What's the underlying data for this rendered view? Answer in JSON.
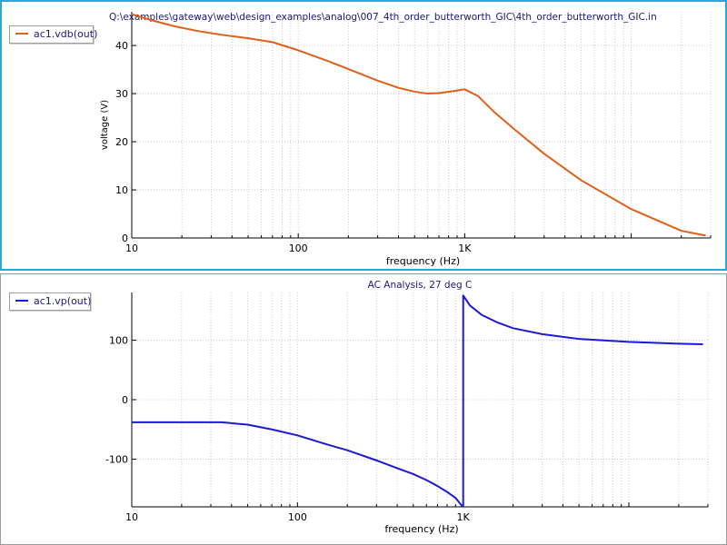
{
  "chart_data": [
    {
      "type": "line",
      "title": "Q:\\examples\\gateway\\web\\design_examples\\analog\\007_4th_order_butterworth_GIC\\4th_order_butterworth_GIC.in",
      "xlabel": "frequency (Hz)",
      "ylabel": "voltage (V)",
      "xscale": "log",
      "xlim": [
        10,
        30000
      ],
      "ylim": [
        0,
        47
      ],
      "xticks": [
        {
          "value": 10,
          "label": "10"
        },
        {
          "value": 100,
          "label": "100"
        },
        {
          "value": 1000,
          "label": "1K"
        }
      ],
      "yticks": [
        0,
        10,
        20,
        30,
        40
      ],
      "grid": true,
      "legend": "top-left",
      "series": [
        {
          "name": "ac1.vdb(out)",
          "color": "#e0601a",
          "x": [
            10,
            13,
            18,
            25,
            35,
            50,
            70,
            100,
            150,
            200,
            300,
            400,
            500,
            600,
            700,
            850,
            1000,
            1200,
            1500,
            2000,
            3000,
            5000,
            10000,
            20000,
            28000
          ],
          "y": [
            46.5,
            45.3,
            44,
            43,
            42.2,
            41.5,
            40.7,
            39,
            36.8,
            35.1,
            32.7,
            31.2,
            30.4,
            30.0,
            30.1,
            30.5,
            30.9,
            29.5,
            26.2,
            22.5,
            17.5,
            12,
            6,
            1.5,
            0.5
          ]
        }
      ]
    },
    {
      "type": "line",
      "title": "AC Analysis, 27 deg C",
      "xlabel": "frequency (Hz)",
      "ylabel": "",
      "xscale": "log",
      "xlim": [
        10,
        30000
      ],
      "ylim": [
        -180,
        180
      ],
      "xticks": [
        {
          "value": 10,
          "label": "10"
        },
        {
          "value": 100,
          "label": "100"
        },
        {
          "value": 1000,
          "label": "1K"
        }
      ],
      "yticks": [
        -100,
        0,
        100
      ],
      "grid": true,
      "legend": "top-left",
      "series": [
        {
          "name": "ac1.vp(out)",
          "color": "#1a1ad8",
          "x": [
            10,
            20,
            35,
            50,
            70,
            100,
            150,
            200,
            300,
            400,
            500,
            600,
            700,
            800,
            900,
            980,
            1000,
            1000.5,
            1100,
            1300,
            1600,
            2000,
            3000,
            5000,
            10000,
            20000,
            28000
          ],
          "y": [
            -38,
            -38,
            -38,
            -42,
            -50,
            -60,
            -75,
            -85,
            -102,
            -115,
            -125,
            -135,
            -145,
            -155,
            -165,
            -178,
            -178,
            175,
            158,
            142,
            130,
            120,
            110,
            102,
            97,
            94,
            93
          ]
        }
      ]
    }
  ]
}
